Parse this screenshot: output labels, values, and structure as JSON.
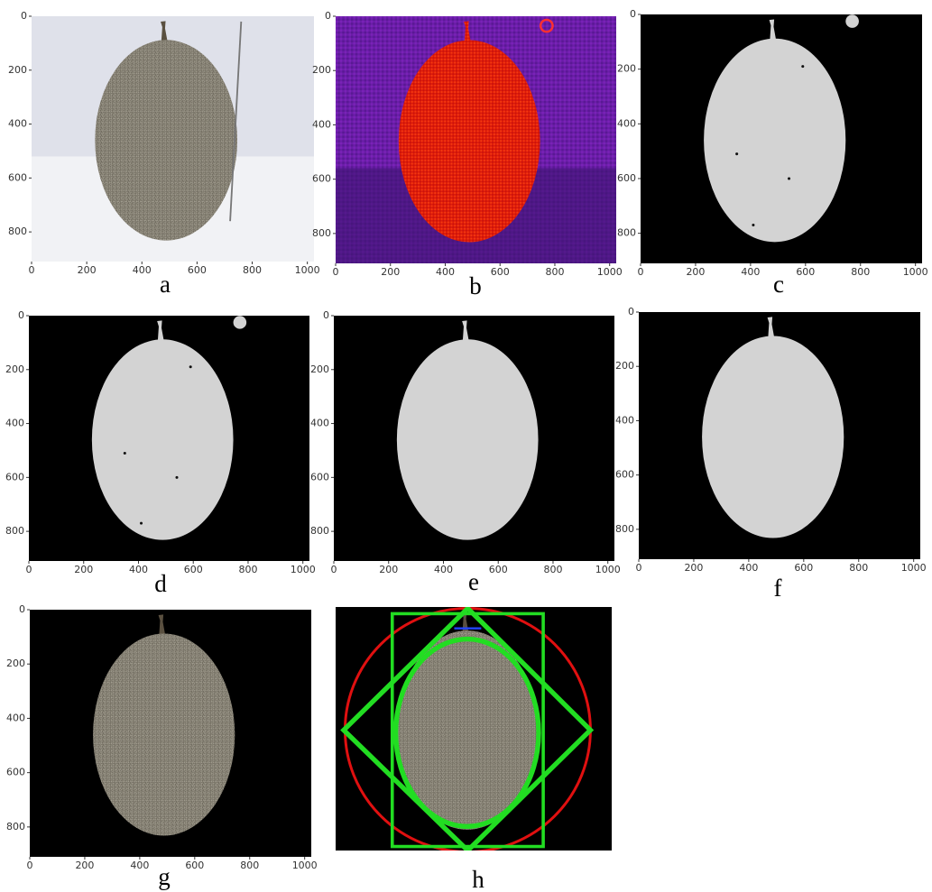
{
  "panels": [
    {
      "label": "a",
      "xticks": [
        0,
        200,
        400,
        600,
        800,
        1000
      ],
      "yticks": [
        0,
        200,
        400,
        600,
        800
      ]
    },
    {
      "label": "b",
      "xticks": [
        0,
        200,
        400,
        600,
        800,
        1000
      ],
      "yticks": [
        0,
        200,
        400,
        600,
        800
      ]
    },
    {
      "label": "c",
      "xticks": [
        0,
        200,
        400,
        600,
        800,
        1000
      ],
      "yticks": [
        0,
        200,
        400,
        600,
        800
      ]
    },
    {
      "label": "d",
      "xticks": [
        0,
        200,
        400,
        600,
        800,
        1000
      ],
      "yticks": [
        0,
        200,
        400,
        600,
        800
      ]
    },
    {
      "label": "e",
      "xticks": [
        0,
        200,
        400,
        600,
        800,
        1000
      ],
      "yticks": [
        0,
        200,
        400,
        600,
        800
      ]
    },
    {
      "label": "f",
      "xticks": [
        0,
        200,
        400,
        600,
        800,
        1000
      ],
      "yticks": [
        0,
        200,
        400,
        600,
        800
      ]
    },
    {
      "label": "g",
      "xticks": [
        0,
        200,
        400,
        600,
        800,
        1000
      ],
      "yticks": [
        0,
        200,
        400,
        600,
        800
      ]
    },
    {
      "label": "h"
    }
  ]
}
